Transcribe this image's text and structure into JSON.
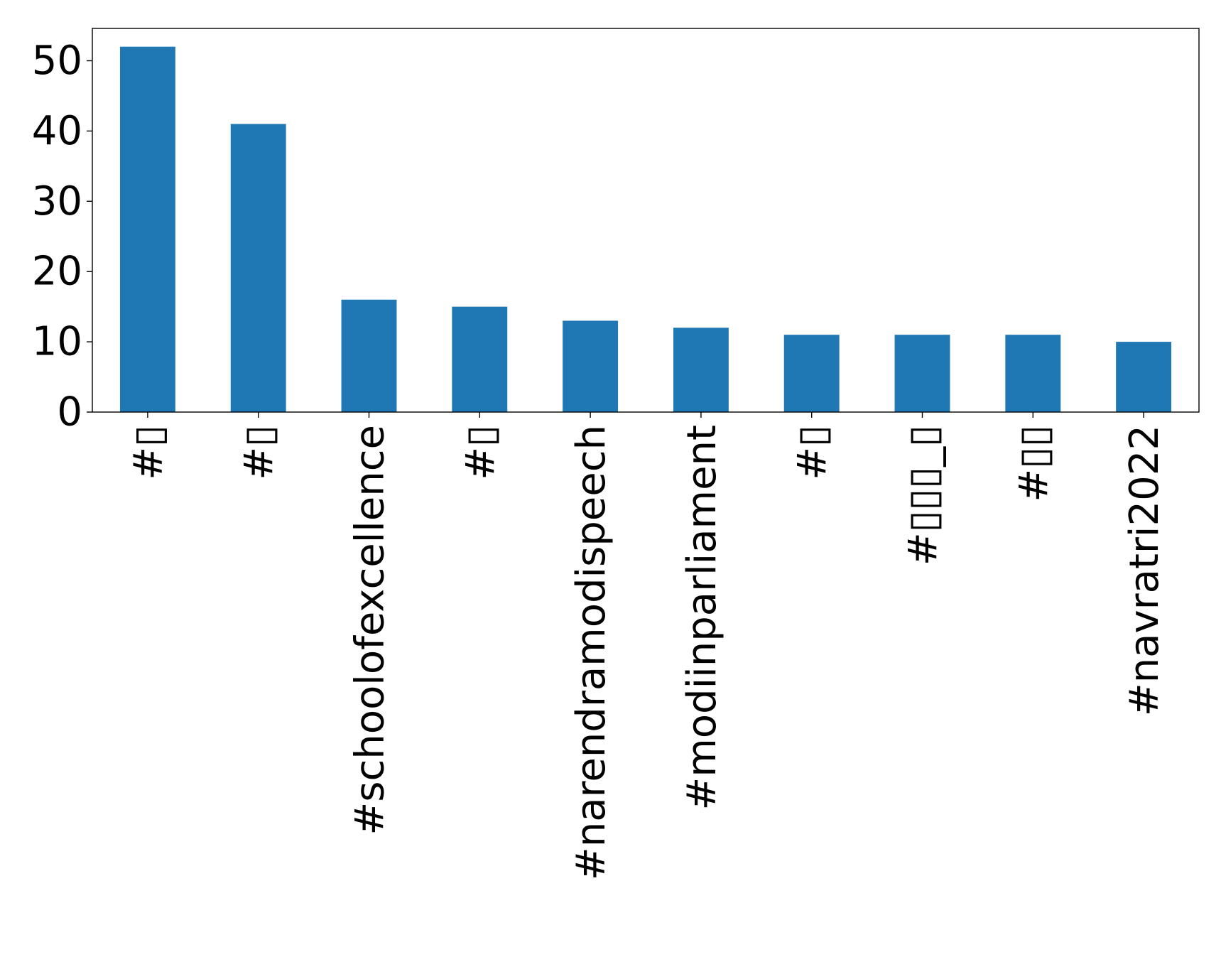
{
  "chart_data": {
    "type": "bar",
    "title": "",
    "xlabel": "",
    "ylabel": "",
    "categories": [
      "#▯",
      "#▯",
      "#schoolofexcellence",
      "#▯",
      "#narendramodispeech",
      "#modiinparliament",
      "#▯",
      "#▯▯▯_▯",
      "#▯▯",
      "#navratri2022"
    ],
    "values": [
      52,
      41,
      16,
      15,
      13,
      12,
      11,
      11,
      11,
      10
    ],
    "ylim": [
      0,
      54.6
    ],
    "yticks": [
      0,
      10,
      20,
      30,
      40,
      50
    ],
    "ytick_labels": [
      "0",
      "10",
      "20",
      "30",
      "40",
      "50"
    ],
    "grid": false,
    "legend": "none",
    "colors": {
      "bar": "#1f77b4",
      "axis": "#000000",
      "background": "#ffffff"
    }
  }
}
